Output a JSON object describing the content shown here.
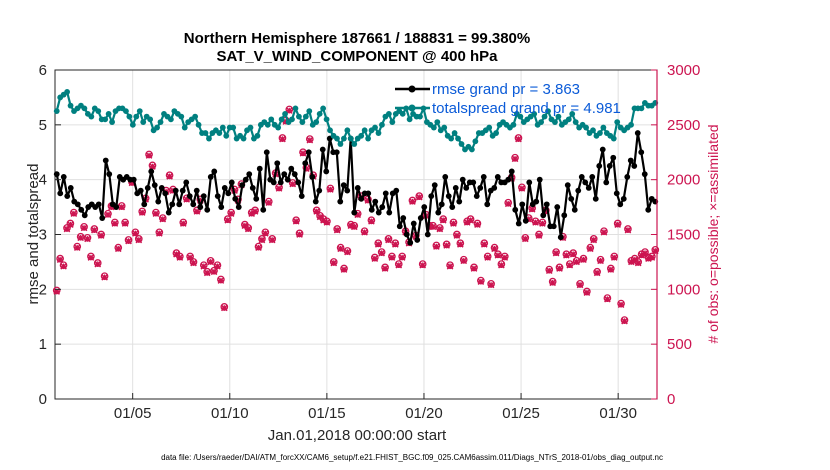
{
  "chart_data": {
    "type": "line",
    "title": "Northern Hemisphere 187661 / 188831 = 99.380%",
    "subtitle": "SAT_V_WIND_COMPONENT @ 400 hPa",
    "xlabel": "Jan.01,2018 00:00:00 start",
    "ylabel": "rmse and totalspread",
    "y2label": "# of obs: o=possible; ×=assimilated",
    "xlim": [
      1.0,
      32.0
    ],
    "ylim": [
      0,
      6
    ],
    "y2lim": [
      0,
      3000
    ],
    "x_ticks": [
      5,
      10,
      15,
      20,
      25,
      30
    ],
    "x_tick_labels": [
      "01/05",
      "01/10",
      "01/15",
      "01/20",
      "01/25",
      "01/30"
    ],
    "y_ticks": [
      "0",
      "1",
      "2",
      "3",
      "4",
      "5",
      "6"
    ],
    "y2_ticks": [
      "0",
      "500",
      "1000",
      "1500",
      "2000",
      "2500",
      "3000"
    ],
    "legend": [
      "rmse grand pr = 3.863",
      "totalspread grand pr = 4.981"
    ],
    "series": [
      {
        "name": "rmse grand pr = 3.863",
        "axis": "left",
        "color": "#000000",
        "values": [
          4.1,
          3.75,
          4.05,
          3.7,
          3.85,
          3.6,
          3.55,
          3.45,
          3.35,
          3.5,
          3.55,
          3.5,
          3.55,
          3.3,
          4.35,
          4.1,
          3.55,
          3.5,
          4.05,
          4.0,
          4.05,
          4.0,
          4.0,
          3.75,
          3.8,
          3.55,
          3.85,
          4.15,
          3.9,
          3.6,
          3.85,
          3.75,
          3.4,
          3.55,
          3.8,
          3.55,
          3.8,
          3.95,
          3.7,
          3.55,
          3.8,
          3.5,
          3.7,
          3.45,
          4.05,
          4.15,
          3.7,
          3.5,
          3.85,
          3.75,
          3.95,
          3.65,
          3.5,
          3.9,
          4.0,
          4.1,
          3.85,
          3.65,
          4.2,
          3.45,
          4.5,
          4.0,
          3.95,
          4.3,
          3.95,
          4.1,
          4.0,
          4.2,
          4.1,
          3.95,
          3.7,
          4.3,
          4.5,
          4.05,
          3.6,
          3.8,
          4.55,
          4.15,
          4.75,
          4.5,
          4.5,
          3.6,
          3.9,
          3.8,
          4.75,
          3.4,
          3.85,
          3.65,
          3.75,
          3.75,
          3.45,
          3.6,
          3.4,
          3.5,
          3.75,
          3.4,
          3.75,
          3.8,
          3.15,
          3.3,
          3.0,
          2.85,
          3.2,
          2.9,
          3.3,
          3.5,
          3.0,
          3.7,
          3.9,
          3.4,
          3.55,
          4.05,
          3.7,
          3.5,
          3.85,
          3.6,
          4.0,
          3.85,
          3.95,
          3.95,
          3.7,
          3.85,
          4.05,
          3.55,
          3.8,
          3.85,
          4.05,
          3.95,
          3.95,
          4.0,
          4.15,
          3.45,
          3.2,
          3.55,
          3.25,
          3.95,
          3.55,
          3.6,
          4.0,
          3.35,
          3.55,
          3.15,
          3.15,
          3.5,
          2.95,
          3.35,
          3.9,
          3.65,
          3.45,
          3.8,
          4.05,
          3.95,
          3.85,
          4.05,
          3.65,
          4.25,
          4.55,
          3.95,
          4.25,
          4.4,
          3.75,
          3.55,
          3.65,
          4.05,
          4.35,
          4.25,
          4.85,
          4.5,
          4.1,
          3.45,
          3.65,
          3.6
        ]
      },
      {
        "name": "totalspread grand pr = 4.981",
        "axis": "left",
        "color": "#008080",
        "values": [
          5.25,
          5.5,
          5.55,
          5.6,
          5.35,
          5.25,
          5.3,
          5.35,
          5.3,
          5.2,
          5.15,
          5.3,
          5.25,
          5.1,
          5.1,
          5.2,
          5.05,
          5.25,
          5.3,
          5.3,
          5.25,
          5.15,
          5.0,
          5.15,
          5.25,
          5.05,
          5.15,
          5.1,
          4.9,
          4.95,
          5.05,
          5.2,
          5.15,
          5.1,
          5.25,
          5.2,
          5.15,
          4.95,
          5.05,
          5.1,
          5.15,
          5.0,
          4.85,
          4.85,
          4.75,
          4.85,
          4.9,
          4.85,
          4.95,
          4.8,
          4.95,
          4.95,
          4.75,
          4.8,
          4.75,
          4.9,
          4.95,
          4.75,
          4.8,
          5.0,
          5.05,
          5.0,
          5.1,
          5.0,
          4.95,
          5.1,
          5.2,
          5.05,
          5.1,
          5.3,
          5.15,
          5.05,
          5.15,
          5.25,
          5.0,
          5.05,
          5.2,
          5.3,
          5.1,
          4.9,
          4.8,
          4.75,
          4.65,
          4.75,
          4.9,
          4.75,
          4.65,
          4.75,
          4.8,
          4.9,
          4.75,
          4.9,
          4.95,
          4.85,
          5.0,
          5.15,
          5.2,
          5.05,
          5.2,
          5.25,
          5.2,
          5.3,
          5.1,
          5.2,
          5.15,
          5.15,
          5.3,
          5.05,
          5.0,
          4.95,
          5.05,
          4.9,
          4.95,
          4.8,
          4.75,
          4.85,
          4.75,
          4.65,
          4.55,
          4.6,
          4.55,
          4.7,
          4.85,
          4.85,
          4.9,
          4.95,
          4.8,
          4.85,
          5.0,
          5.05,
          5.0,
          4.95,
          5.0,
          5.2,
          5.15,
          5.05,
          5.1,
          5.15,
          5.2,
          5.0,
          5.05,
          5.15,
          5.25,
          5.1,
          5.05,
          5.15,
          5.0,
          5.05,
          5.1,
          5.2,
          5.05,
          4.95,
          5.0,
          4.95,
          4.85,
          4.9,
          4.8,
          4.85,
          4.95,
          4.85,
          4.8,
          4.75,
          5.05,
          4.95,
          4.9,
          4.95,
          5.0,
          5.3,
          5.3,
          5.3,
          5.4,
          5.35,
          5.35,
          5.4
        ]
      },
      {
        "name": "obs possible",
        "axis": "right",
        "marker": "o",
        "color": "#cc1450",
        "values": [
          990,
          1280,
          1220,
          1560,
          1600,
          1700,
          1390,
          1480,
          1570,
          1470,
          1300,
          1550,
          1240,
          1500,
          1120,
          1690,
          1760,
          1610,
          1380,
          1760,
          1610,
          1450,
          1980,
          1520,
          1460,
          1710,
          1830,
          2230,
          2130,
          1700,
          1520,
          1650,
          1900,
          2040,
          1910,
          1330,
          1300,
          1610,
          1830,
          1300,
          1250,
          1720,
          1820,
          1220,
          1160,
          1260,
          1170,
          1220,
          1090,
          840,
          1640,
          1700,
          1910,
          1820,
          1960,
          1590,
          1560,
          1700,
          1720,
          1390,
          1460,
          1520,
          1800,
          1460,
          2060,
          1930,
          2380,
          2540,
          2640,
          1970,
          1630,
          1510,
          2250,
          2110,
          2370,
          2040,
          1720,
          1670,
          1640,
          1620,
          1920,
          1250,
          1550,
          1380,
          1190,
          1350,
          1590,
          1580,
          1690,
          1850,
          1530,
          1820,
          1630,
          1290,
          1420,
          1340,
          1200,
          1460,
          1300,
          1420,
          1230,
          1300,
          1530,
          1430,
          1810,
          1490,
          1850,
          1230,
          1680,
          1580,
          1580,
          1400,
          1560,
          1640,
          1410,
          1220,
          1610,
          1500,
          1420,
          1270,
          1620,
          1640,
          1200,
          1600,
          1080,
          1420,
          1300,
          1050,
          1380,
          1320,
          1230,
          1300,
          1790,
          2020,
          2200,
          2380,
          1930,
          1470,
          1650,
          1740,
          1620,
          1500,
          1610,
          1720,
          1180,
          1070,
          1340,
          1200,
          1480,
          1320,
          1230,
          1330,
          1260,
          1050,
          1280,
          980,
          1380,
          1460,
          1160,
          1270,
          1530,
          920,
          1190,
          1300,
          1600,
          870,
          720,
          1550,
          1260,
          1280,
          1250,
          1320,
          1340,
          1290,
          1300,
          1360
        ]
      },
      {
        "name": "obs assimilated",
        "axis": "right",
        "marker": "x",
        "color": "#cc1450",
        "values": [
          980,
          1270,
          1210,
          1550,
          1590,
          1690,
          1380,
          1470,
          1560,
          1460,
          1290,
          1540,
          1230,
          1490,
          1110,
          1680,
          1750,
          1600,
          1370,
          1750,
          1600,
          1440,
          1970,
          1510,
          1450,
          1700,
          1820,
          2220,
          2120,
          1690,
          1510,
          1640,
          1890,
          2030,
          1900,
          1320,
          1290,
          1600,
          1820,
          1290,
          1240,
          1710,
          1810,
          1210,
          1150,
          1250,
          1160,
          1210,
          1080,
          830,
          1630,
          1690,
          1900,
          1810,
          1950,
          1580,
          1550,
          1690,
          1710,
          1380,
          1450,
          1510,
          1790,
          1450,
          2050,
          1920,
          2370,
          2530,
          2630,
          1960,
          1620,
          1500,
          2240,
          2100,
          2360,
          2030,
          1710,
          1660,
          1630,
          1610,
          1910,
          1240,
          1540,
          1370,
          1180,
          1340,
          1580,
          1570,
          1680,
          1840,
          1520,
          1810,
          1620,
          1280,
          1410,
          1330,
          1190,
          1450,
          1290,
          1410,
          1220,
          1290,
          1520,
          1420,
          1800,
          1480,
          1840,
          1220,
          1670,
          1570,
          1570,
          1390,
          1550,
          1630,
          1400,
          1210,
          1600,
          1490,
          1410,
          1260,
          1610,
          1630,
          1190,
          1590,
          1070,
          1410,
          1290,
          1040,
          1370,
          1310,
          1220,
          1290,
          1780,
          2010,
          2190,
          2370,
          1920,
          1460,
          1640,
          1730,
          1610,
          1490,
          1600,
          1710,
          1170,
          1060,
          1330,
          1190,
          1470,
          1310,
          1220,
          1320,
          1250,
          1040,
          1270,
          970,
          1370,
          1450,
          1150,
          1260,
          1520,
          910,
          1180,
          1290,
          1590,
          860,
          710,
          1540,
          1250,
          1270,
          1240,
          1310,
          1330,
          1280,
          1290,
          1350
        ]
      }
    ]
  },
  "footnote": "data file: /Users/raeder/DAI/ATM_forcXX/CAM6_setup/f.e21.FHIST_BGC.f09_025.CAM6assim.011/Diags_NTrS_2018-01/obs_diag_output.nc"
}
